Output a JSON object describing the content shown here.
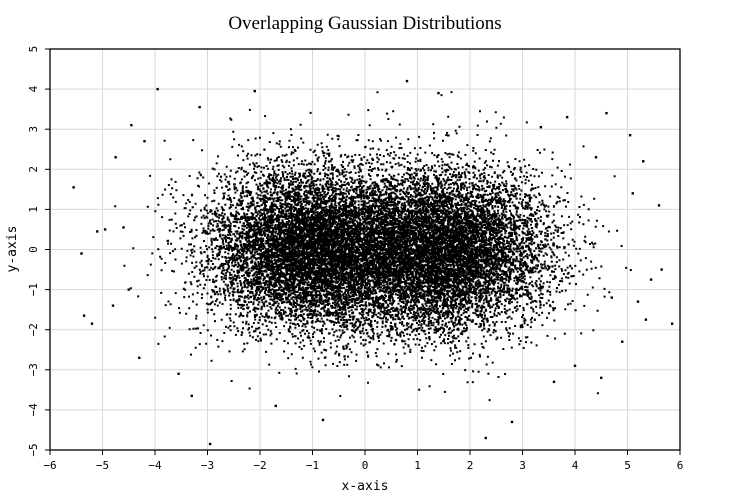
{
  "chart_data": {
    "type": "scatter",
    "title": "Overlapping Gaussian Distributions",
    "xlabel": "x-axis",
    "ylabel": "y-axis",
    "xlim": [
      -6,
      6
    ],
    "ylim": [
      -5,
      5
    ],
    "xticks": [
      "−6",
      "−5",
      "−4",
      "−3",
      "−2",
      "−1",
      "0",
      "1",
      "2",
      "3",
      "4",
      "5",
      "6"
    ],
    "yticks": [
      "−5",
      "−4",
      "−3",
      "−2",
      "−1",
      "0",
      "1",
      "2",
      "3",
      "4",
      "5"
    ],
    "grid": true,
    "marker_color": "#000000",
    "series": [
      {
        "distribution": "gaussian",
        "mean": [
          -1.0,
          0.0
        ],
        "std": [
          1.0,
          1.0
        ]
      },
      {
        "distribution": "gaussian",
        "mean": [
          1.5,
          0.0
        ],
        "std": [
          1.0,
          1.0
        ]
      }
    ],
    "outlier_points": [
      {
        "x": -5.55,
        "y": 1.55
      },
      {
        "x": -5.4,
        "y": -0.1
      },
      {
        "x": -5.35,
        "y": -1.65
      },
      {
        "x": -5.2,
        "y": -1.85
      },
      {
        "x": -5.1,
        "y": 0.45
      },
      {
        "x": -4.95,
        "y": 0.5
      },
      {
        "x": -4.8,
        "y": -1.4
      },
      {
        "x": -4.75,
        "y": 2.3
      },
      {
        "x": -4.6,
        "y": 0.55
      },
      {
        "x": -4.5,
        "y": -1.0
      },
      {
        "x": -4.45,
        "y": 3.1
      },
      {
        "x": -4.3,
        "y": -2.7
      },
      {
        "x": -4.2,
        "y": 2.7
      },
      {
        "x": -3.95,
        "y": 4.0
      },
      {
        "x": -3.55,
        "y": -3.1
      },
      {
        "x": -3.3,
        "y": -3.65
      },
      {
        "x": -3.15,
        "y": 3.55
      },
      {
        "x": -2.95,
        "y": -4.85
      },
      {
        "x": -2.1,
        "y": 3.95
      },
      {
        "x": -1.7,
        "y": -3.9
      },
      {
        "x": -0.8,
        "y": -4.25
      },
      {
        "x": 0.8,
        "y": 4.2
      },
      {
        "x": 1.4,
        "y": 3.9
      },
      {
        "x": 2.3,
        "y": -4.7
      },
      {
        "x": 2.8,
        "y": -4.3
      },
      {
        "x": 3.35,
        "y": 3.05
      },
      {
        "x": 3.6,
        "y": -3.3
      },
      {
        "x": 3.85,
        "y": 3.3
      },
      {
        "x": 4.0,
        "y": -2.9
      },
      {
        "x": 4.4,
        "y": 2.3
      },
      {
        "x": 4.5,
        "y": -3.2
      },
      {
        "x": 4.6,
        "y": 3.4
      },
      {
        "x": 4.7,
        "y": -1.2
      },
      {
        "x": 4.9,
        "y": -2.3
      },
      {
        "x": 5.05,
        "y": 2.85
      },
      {
        "x": 5.1,
        "y": 1.4
      },
      {
        "x": 5.2,
        "y": -1.3
      },
      {
        "x": 5.3,
        "y": 2.2
      },
      {
        "x": 5.35,
        "y": -1.75
      },
      {
        "x": 5.45,
        "y": -0.75
      },
      {
        "x": 5.6,
        "y": 1.1
      },
      {
        "x": 5.65,
        "y": -0.5
      },
      {
        "x": 5.85,
        "y": -1.85
      }
    ]
  }
}
